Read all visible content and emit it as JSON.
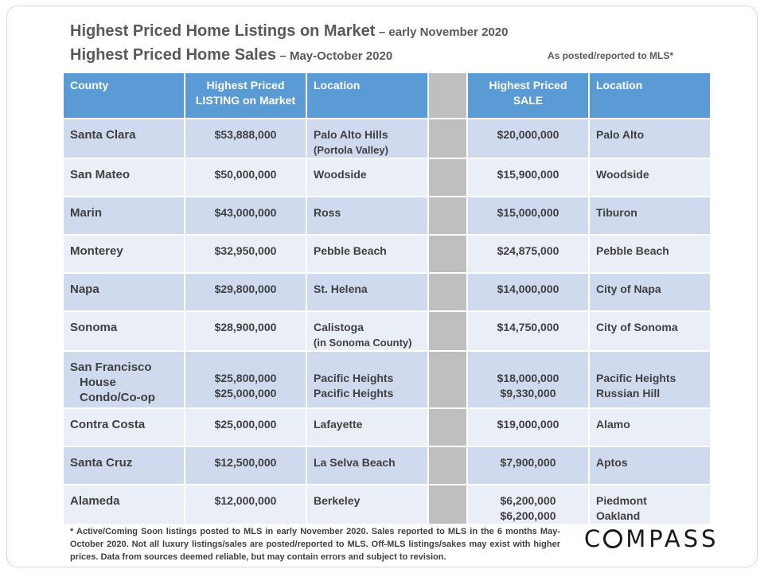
{
  "titles": {
    "line1_main": "Highest Priced Home Listings on Market",
    "line1_sub": "– early November 2020",
    "line2_main": "Highest Priced Home Sales",
    "line2_sub": "– May-October 2020",
    "note": "As posted/reported to MLS*"
  },
  "table": {
    "headers": {
      "county": "County",
      "listing_line1": "Highest Priced",
      "listing_line2": "LISTING on Market",
      "listing_location": "Location",
      "sale_line1": "Highest Priced",
      "sale_line2": "SALE",
      "sale_location": "Location"
    },
    "rows": [
      {
        "county": "Santa Clara",
        "listing": "$53,888,000",
        "listing_location": "Palo Alto Hills",
        "listing_location_sub": "(Portola Valley)",
        "sale": "$20,000,000",
        "sale_location": "Palo Alto"
      },
      {
        "county": "San Mateo",
        "listing": "$50,000,000",
        "listing_location": "Woodside",
        "sale": "$15,900,000",
        "sale_location": "Woodside"
      },
      {
        "county": "Marin",
        "listing": "$43,000,000",
        "listing_location": "Ross",
        "sale": "$15,000,000",
        "sale_location": "Tiburon"
      },
      {
        "county": "Monterey",
        "listing": "$32,950,000",
        "listing_location": "Pebble Beach",
        "sale": "$24,875,000",
        "sale_location": "Pebble Beach"
      },
      {
        "county": "Napa",
        "listing": "$29,800,000",
        "listing_location": "St. Helena",
        "sale": "$14,000,000",
        "sale_location": "City of Napa"
      },
      {
        "county": "Sonoma",
        "listing": "$28,900,000",
        "listing_location": "Calistoga",
        "listing_location_sub": "(in Sonoma County)",
        "sale": "$14,750,000",
        "sale_location": "City of Sonoma"
      },
      {
        "county": "San Francisco",
        "county_sub1": "House",
        "county_sub2": "Condo/Co-op",
        "listing": "$25,800,000",
        "listing_2": "$25,000,000",
        "listing_location": "Pacific Heights",
        "listing_location_2": "Pacific Heights",
        "sale": "$18,000,000",
        "sale_2": "$9,330,000",
        "sale_location": "Pacific Heights",
        "sale_location_2": "Russian Hill"
      },
      {
        "county": "Contra Costa",
        "listing": "$25,000,000",
        "listing_location": "Lafayette",
        "sale": "$19,000,000",
        "sale_location": "Alamo"
      },
      {
        "county": "Santa Cruz",
        "listing": "$12,500,000",
        "listing_location": "La Selva Beach",
        "sale": "$7,900,000",
        "sale_location": "Aptos"
      },
      {
        "county": "Alameda",
        "listing": "$12,000,000",
        "listing_location": "Berkeley",
        "sale": "$6,200,000",
        "sale_2": "$6,200,000",
        "sale_location": "Piedmont",
        "sale_location_2": "Oakland"
      }
    ]
  },
  "footnote": "* Active/Coming Soon listings posted to MLS in early November 2020. Sales reported to MLS in the 6 months May-October 2020. Not all luxury listings/sales are posted/reported to MLS. Off-MLS listings/sakes may exist with higher prices. Data from sources deemed reliable, but may contain errors and subject to revision.",
  "logo": {
    "text": "COMPASS",
    "after_o": "MPASS",
    "first": "C"
  }
}
